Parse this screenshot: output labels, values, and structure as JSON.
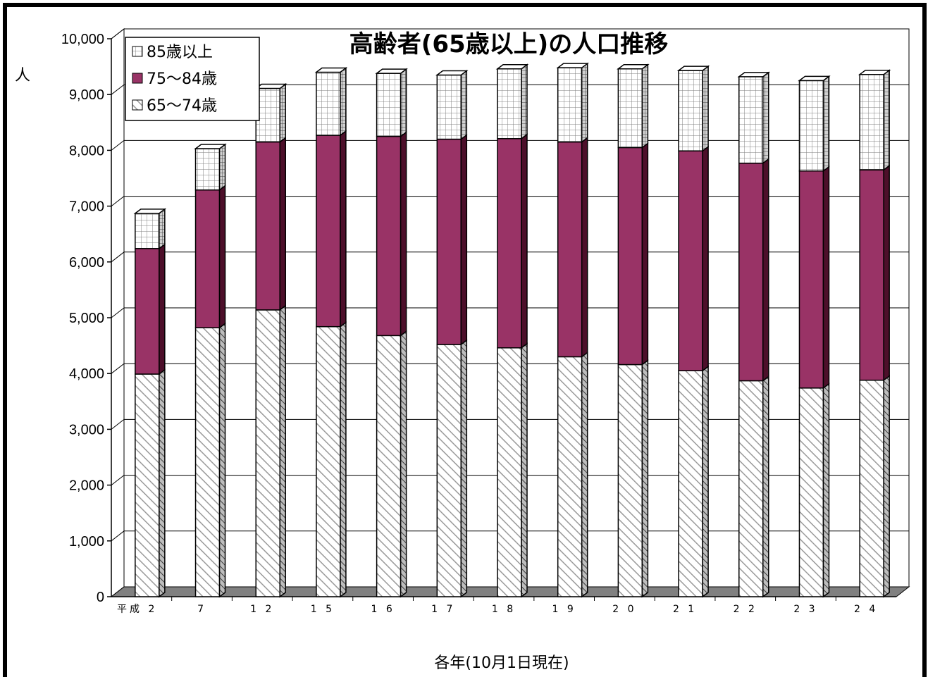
{
  "chart_data": {
    "type": "bar",
    "stacked": true,
    "title": "高齢者(65歳以上)の人口推移",
    "ylabel": "人",
    "xlabel": "各年(10月1日現在)",
    "x_prefix": "平成",
    "ylim": [
      0,
      10000
    ],
    "yticks": [
      "0",
      "1,000",
      "2,000",
      "3,000",
      "4,000",
      "5,000",
      "6,000",
      "7,000",
      "8,000",
      "9,000",
      "10,000"
    ],
    "categories": [
      "2",
      "7",
      "12",
      "15",
      "16",
      "17",
      "18",
      "19",
      "20",
      "21",
      "22",
      "23",
      "24"
    ],
    "series": [
      {
        "name": "65～74歳",
        "pattern": "diagonal-hatch",
        "color": "#ffffff",
        "values": [
          3990,
          4820,
          5140,
          4840,
          4680,
          4520,
          4460,
          4300,
          4160,
          4050,
          3870,
          3740,
          3880
        ]
      },
      {
        "name": "75～84歳",
        "pattern": "solid",
        "color": "#993366",
        "values": [
          2250,
          2470,
          3010,
          3430,
          3570,
          3680,
          3750,
          3850,
          3890,
          3940,
          3900,
          3890,
          3770
        ]
      },
      {
        "name": "85歳以上",
        "pattern": "grid",
        "color": "#ffffff",
        "values": [
          630,
          740,
          960,
          1130,
          1130,
          1150,
          1250,
          1330,
          1410,
          1440,
          1550,
          1620,
          1710
        ]
      }
    ],
    "legend": {
      "placement": "top-left",
      "entries": [
        "85歳以上",
        "75～84歳",
        "65～74歳"
      ]
    },
    "grid": true,
    "colors": {
      "floor": "#808080",
      "side_dark": "#4d0f2a",
      "outline": "#000000"
    }
  }
}
